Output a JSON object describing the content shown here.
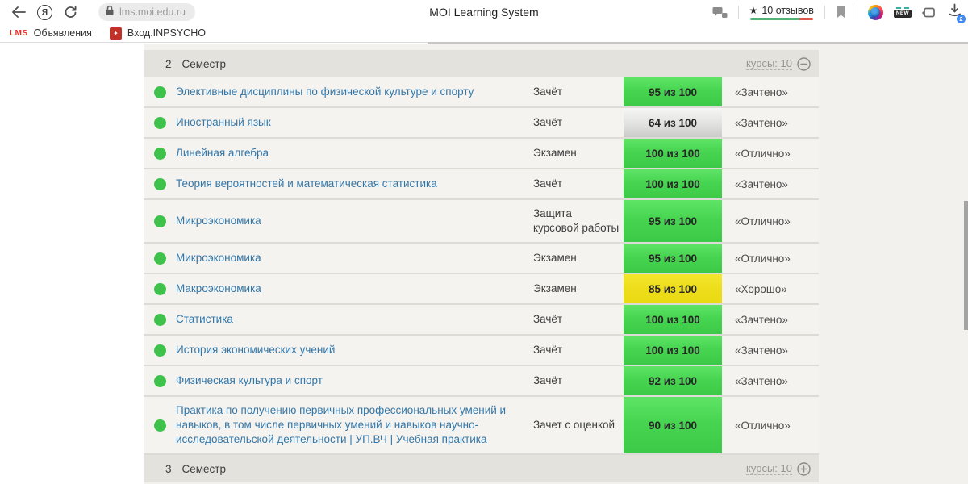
{
  "browser": {
    "url": "lms.moi.edu.ru",
    "title": "MOI Learning System",
    "yandex_logo": "Я",
    "rating_star": "★",
    "rating_label": "10 отзывов",
    "new_badge": "NEW",
    "downloads_count": "2"
  },
  "bookmarks_bar": {
    "items": [
      {
        "icon_text": "LMS",
        "label": "Объявления"
      },
      {
        "icon_text": "✦",
        "label": "Вход.INPSYCHO"
      }
    ]
  },
  "semesters": {
    "current": {
      "number": "2",
      "title": "Семестр",
      "courses": "курсы: 10",
      "state": "expanded"
    },
    "next": {
      "number": "3",
      "title": "Семестр",
      "courses": "курсы: 10",
      "state": "collapsed"
    }
  },
  "grades": [
    {
      "course": "Элективные дисциплины по физической культуре и спорту",
      "type": "Зачёт",
      "score": "95 из 100",
      "score_level": "green",
      "grade": "«Зачтено»"
    },
    {
      "course": "Иностранный язык",
      "type": "Зачёт",
      "score": "64 из 100",
      "score_level": "silver",
      "grade": "«Зачтено»"
    },
    {
      "course": "Линейная алгебра",
      "type": "Экзамен",
      "score": "100 из 100",
      "score_level": "green",
      "grade": "«Отлично»"
    },
    {
      "course": "Теория вероятностей и математическая статистика",
      "type": "Зачёт",
      "score": "100 из 100",
      "score_level": "green",
      "grade": "«Зачтено»"
    },
    {
      "course": "Микроэкономика",
      "type": "Защита курсовой работы",
      "score": "95 из 100",
      "score_level": "green",
      "grade": "«Отлично»"
    },
    {
      "course": "Микроэкономика",
      "type": "Экзамен",
      "score": "95 из 100",
      "score_level": "green",
      "grade": "«Отлично»"
    },
    {
      "course": "Макроэкономика",
      "type": "Экзамен",
      "score": "85 из 100",
      "score_level": "yellow",
      "grade": "«Хорошо»"
    },
    {
      "course": "Статистика",
      "type": "Зачёт",
      "score": "100 из 100",
      "score_level": "green",
      "grade": "«Зачтено»"
    },
    {
      "course": "История экономических учений",
      "type": "Зачёт",
      "score": "100 из 100",
      "score_level": "green",
      "grade": "«Зачтено»"
    },
    {
      "course": "Физическая культура и спорт",
      "type": "Зачёт",
      "score": "92 из 100",
      "score_level": "green",
      "grade": "«Зачтено»"
    },
    {
      "course": "Практика по получению первичных профессиональных умений и навыков, в том числе первичных умений и навыков научно-исследовательской деятельности | УП.ВЧ | Учебная практика",
      "type": "Зачет с оценкой",
      "score": "90 из 100",
      "score_level": "green",
      "grade": "«Отлично»"
    }
  ],
  "colors": {
    "badge_green": "#47d551",
    "badge_yellow": "#eddd1b",
    "badge_silver": "#d9d9d7",
    "status_dot_green": "#3fc24b",
    "link_blue": "#3377a9",
    "header_gray": "#e3e2dd",
    "row_beige": "#f4f3ef"
  }
}
